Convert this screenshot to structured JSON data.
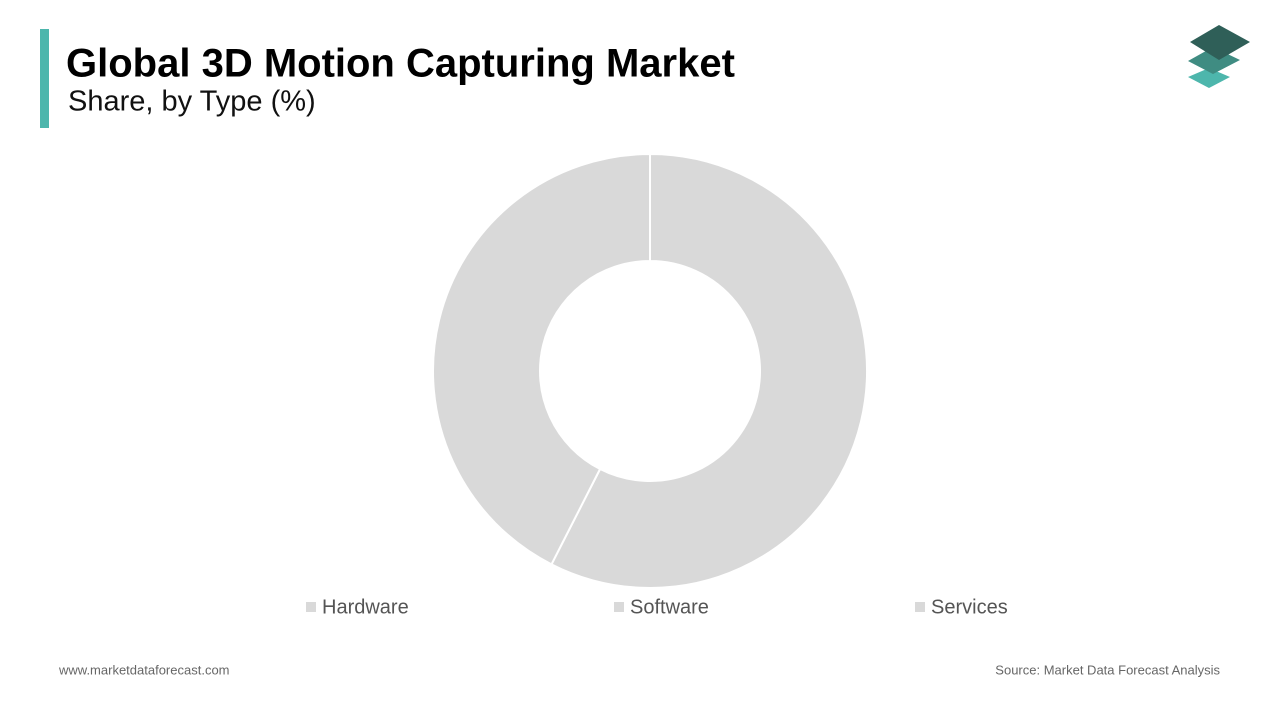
{
  "chart_data": {
    "type": "donut",
    "title": "Global 3D Motion Capturing Market",
    "subtitle": "Share, by Type (%)",
    "categories": [
      "Hardware",
      "Software",
      "Services"
    ],
    "values": [
      57.5,
      42.5,
      0
    ],
    "colors": [
      "#d9d9d9",
      "#d9d9d9",
      "#d9d9d9"
    ]
  },
  "footer": {
    "website": "www.marketdataforecast.com",
    "source": "Source: Market Data Forecast Analysis"
  }
}
